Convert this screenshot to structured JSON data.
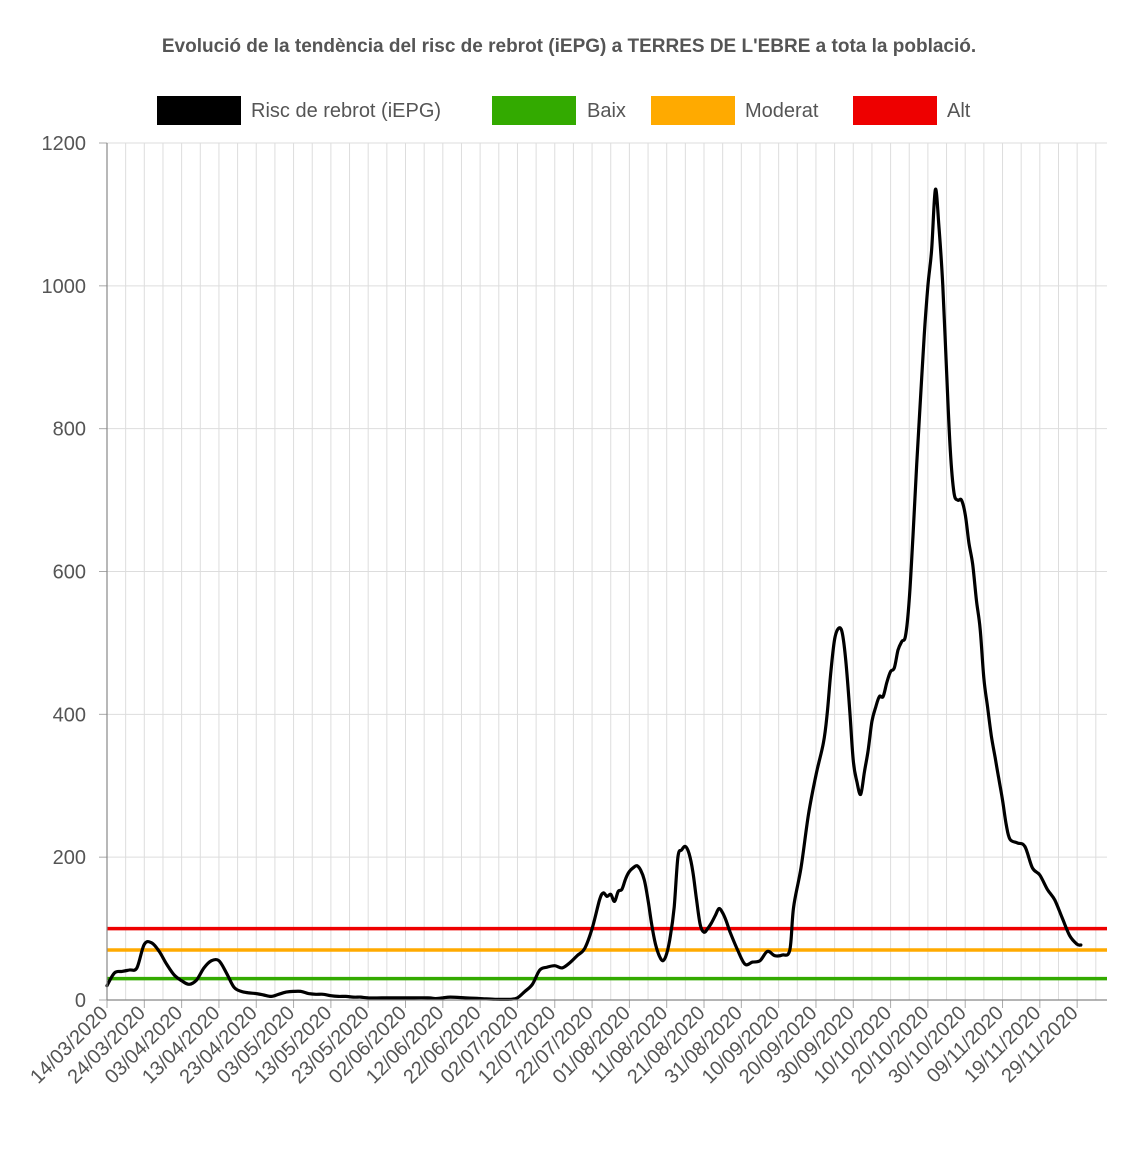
{
  "chart_data": {
    "type": "line",
    "title": "Evolució de la tendència del risc de rebrot (iEPG) a TERRES DE L'EBRE a tota la població.",
    "xlabel": "",
    "ylabel": "",
    "ylim": [
      0,
      1200
    ],
    "yticks": [
      0,
      200,
      400,
      600,
      800,
      1000,
      1200
    ],
    "x_start": "14/03/2020",
    "x_end": "07/12/2020",
    "xtick_labels": [
      "14/03/2020",
      "24/03/2020",
      "03/04/2020",
      "13/04/2020",
      "23/04/2020",
      "03/05/2020",
      "13/05/2020",
      "23/05/2020",
      "02/06/2020",
      "12/06/2020",
      "22/06/2020",
      "02/07/2020",
      "12/07/2020",
      "22/07/2020",
      "01/08/2020",
      "11/08/2020",
      "21/08/2020",
      "31/08/2020",
      "10/09/2020",
      "20/09/2020",
      "30/09/2020",
      "10/10/2020",
      "20/10/2020",
      "30/10/2020",
      "09/11/2020",
      "19/11/2020",
      "29/11/2020"
    ],
    "grid": true,
    "legend_position": "top",
    "series": [
      {
        "name": "Risc de rebrot (iEPG)",
        "color": "#000000",
        "points": [
          [
            "14/03/2020",
            20
          ],
          [
            "16/03/2020",
            38
          ],
          [
            "18/03/2020",
            40
          ],
          [
            "20/03/2020",
            42
          ],
          [
            "22/03/2020",
            45
          ],
          [
            "24/03/2020",
            78
          ],
          [
            "26/03/2020",
            80
          ],
          [
            "28/03/2020",
            68
          ],
          [
            "30/03/2020",
            50
          ],
          [
            "01/04/2020",
            35
          ],
          [
            "03/04/2020",
            27
          ],
          [
            "05/04/2020",
            22
          ],
          [
            "07/04/2020",
            28
          ],
          [
            "09/04/2020",
            45
          ],
          [
            "11/04/2020",
            55
          ],
          [
            "13/04/2020",
            55
          ],
          [
            "15/04/2020",
            38
          ],
          [
            "17/04/2020",
            18
          ],
          [
            "19/04/2020",
            12
          ],
          [
            "21/04/2020",
            10
          ],
          [
            "23/04/2020",
            9
          ],
          [
            "25/04/2020",
            7
          ],
          [
            "27/04/2020",
            5
          ],
          [
            "29/04/2020",
            8
          ],
          [
            "01/05/2020",
            11
          ],
          [
            "03/05/2020",
            12
          ],
          [
            "05/05/2020",
            12
          ],
          [
            "07/05/2020",
            9
          ],
          [
            "09/05/2020",
            8
          ],
          [
            "11/05/2020",
            8
          ],
          [
            "13/05/2020",
            6
          ],
          [
            "15/05/2020",
            5
          ],
          [
            "17/05/2020",
            5
          ],
          [
            "19/05/2020",
            4
          ],
          [
            "21/05/2020",
            4
          ],
          [
            "23/05/2020",
            3
          ],
          [
            "27/05/2020",
            3
          ],
          [
            "02/06/2020",
            3
          ],
          [
            "08/06/2020",
            3
          ],
          [
            "10/06/2020",
            2
          ],
          [
            "12/06/2020",
            3
          ],
          [
            "14/06/2020",
            4
          ],
          [
            "18/06/2020",
            3
          ],
          [
            "22/06/2020",
            2
          ],
          [
            "26/06/2020",
            1
          ],
          [
            "30/06/2020",
            1
          ],
          [
            "02/07/2020",
            3
          ],
          [
            "04/07/2020",
            12
          ],
          [
            "06/07/2020",
            22
          ],
          [
            "08/07/2020",
            42
          ],
          [
            "10/07/2020",
            46
          ],
          [
            "12/07/2020",
            48
          ],
          [
            "14/07/2020",
            45
          ],
          [
            "16/07/2020",
            52
          ],
          [
            "18/07/2020",
            62
          ],
          [
            "20/07/2020",
            72
          ],
          [
            "22/07/2020",
            100
          ],
          [
            "24/07/2020",
            140
          ],
          [
            "25/07/2020",
            150
          ],
          [
            "26/07/2020",
            145
          ],
          [
            "27/07/2020",
            148
          ],
          [
            "28/07/2020",
            138
          ],
          [
            "29/07/2020",
            152
          ],
          [
            "30/07/2020",
            155
          ],
          [
            "31/07/2020",
            170
          ],
          [
            "01/08/2020",
            180
          ],
          [
            "02/08/2020",
            185
          ],
          [
            "03/08/2020",
            188
          ],
          [
            "04/08/2020",
            182
          ],
          [
            "05/08/2020",
            168
          ],
          [
            "06/08/2020",
            140
          ],
          [
            "07/08/2020",
            105
          ],
          [
            "08/08/2020",
            78
          ],
          [
            "09/08/2020",
            62
          ],
          [
            "10/08/2020",
            55
          ],
          [
            "11/08/2020",
            65
          ],
          [
            "12/08/2020",
            90
          ],
          [
            "13/08/2020",
            130
          ],
          [
            "14/08/2020",
            200
          ],
          [
            "15/08/2020",
            210
          ],
          [
            "16/08/2020",
            215
          ],
          [
            "17/08/2020",
            205
          ],
          [
            "18/08/2020",
            180
          ],
          [
            "19/08/2020",
            140
          ],
          [
            "20/08/2020",
            105
          ],
          [
            "21/08/2020",
            95
          ],
          [
            "22/08/2020",
            100
          ],
          [
            "23/08/2020",
            108
          ],
          [
            "24/08/2020",
            118
          ],
          [
            "25/08/2020",
            128
          ],
          [
            "26/08/2020",
            122
          ],
          [
            "27/08/2020",
            110
          ],
          [
            "28/08/2020",
            95
          ],
          [
            "30/08/2020",
            70
          ],
          [
            "01/09/2020",
            50
          ],
          [
            "03/09/2020",
            53
          ],
          [
            "05/09/2020",
            55
          ],
          [
            "07/09/2020",
            68
          ],
          [
            "09/09/2020",
            62
          ],
          [
            "11/09/2020",
            63
          ],
          [
            "13/09/2020",
            70
          ],
          [
            "14/09/2020",
            130
          ],
          [
            "16/09/2020",
            185
          ],
          [
            "18/09/2020",
            260
          ],
          [
            "20/09/2020",
            315
          ],
          [
            "22/09/2020",
            360
          ],
          [
            "23/09/2020",
            400
          ],
          [
            "24/09/2020",
            460
          ],
          [
            "25/09/2020",
            505
          ],
          [
            "26/09/2020",
            520
          ],
          [
            "27/09/2020",
            515
          ],
          [
            "28/09/2020",
            475
          ],
          [
            "29/09/2020",
            410
          ],
          [
            "30/09/2020",
            335
          ],
          [
            "01/10/2020",
            305
          ],
          [
            "02/10/2020",
            288
          ],
          [
            "03/10/2020",
            320
          ],
          [
            "04/10/2020",
            350
          ],
          [
            "05/10/2020",
            390
          ],
          [
            "06/10/2020",
            410
          ],
          [
            "07/10/2020",
            425
          ],
          [
            "08/10/2020",
            425
          ],
          [
            "09/10/2020",
            445
          ],
          [
            "10/10/2020",
            460
          ],
          [
            "11/10/2020",
            465
          ],
          [
            "12/10/2020",
            490
          ],
          [
            "13/10/2020",
            502
          ],
          [
            "14/10/2020",
            510
          ],
          [
            "15/10/2020",
            560
          ],
          [
            "16/10/2020",
            650
          ],
          [
            "17/10/2020",
            750
          ],
          [
            "18/10/2020",
            840
          ],
          [
            "19/10/2020",
            930
          ],
          [
            "20/10/2020",
            1000
          ],
          [
            "21/10/2020",
            1050
          ],
          [
            "22/10/2020",
            1135
          ],
          [
            "23/10/2020",
            1080
          ],
          [
            "24/10/2020",
            1000
          ],
          [
            "25/10/2020",
            880
          ],
          [
            "26/10/2020",
            770
          ],
          [
            "27/10/2020",
            710
          ],
          [
            "28/10/2020",
            700
          ],
          [
            "29/10/2020",
            700
          ],
          [
            "30/10/2020",
            680
          ],
          [
            "31/10/2020",
            640
          ],
          [
            "01/11/2020",
            610
          ],
          [
            "02/11/2020",
            560
          ],
          [
            "03/11/2020",
            520
          ],
          [
            "04/11/2020",
            450
          ],
          [
            "05/11/2020",
            410
          ],
          [
            "06/11/2020",
            370
          ],
          [
            "07/11/2020",
            340
          ],
          [
            "08/11/2020",
            310
          ],
          [
            "09/11/2020",
            280
          ],
          [
            "10/11/2020",
            245
          ],
          [
            "11/11/2020",
            225
          ],
          [
            "13/11/2020",
            220
          ],
          [
            "15/11/2020",
            215
          ],
          [
            "17/11/2020",
            185
          ],
          [
            "19/11/2020",
            175
          ],
          [
            "21/11/2020",
            155
          ],
          [
            "23/11/2020",
            140
          ],
          [
            "25/11/2020",
            115
          ],
          [
            "27/11/2020",
            90
          ],
          [
            "29/11/2020",
            78
          ],
          [
            "30/11/2020",
            77
          ]
        ]
      },
      {
        "name": "Baix",
        "color": "#33aa00",
        "value": 30
      },
      {
        "name": "Moderat",
        "color": "#ffaa00",
        "value": 70
      },
      {
        "name": "Alt",
        "color": "#ee0000",
        "value": 100
      }
    ]
  }
}
